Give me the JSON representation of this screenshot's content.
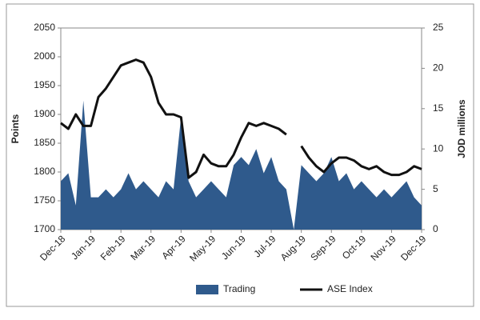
{
  "chart_data": {
    "type": "line-area",
    "categories": [
      "Dec-18",
      null,
      null,
      null,
      "Jan-19",
      null,
      null,
      null,
      "Feb-19",
      null,
      null,
      null,
      "Mar-19",
      null,
      null,
      null,
      "Apr-19",
      null,
      null,
      null,
      "May-19",
      null,
      null,
      null,
      "Jun-19",
      null,
      null,
      null,
      "Jul-19",
      null,
      null,
      null,
      "Aug-19",
      null,
      null,
      null,
      "Sep-19",
      null,
      null,
      null,
      "Oct-19",
      null,
      null,
      null,
      "Nov-19",
      null,
      null,
      null,
      "Dec-19"
    ],
    "series": [
      {
        "name": "Trading",
        "color": "#2f5a8c",
        "kind": "area",
        "axis": "y2",
        "values": [
          6,
          7,
          3,
          16,
          4,
          4,
          5,
          4,
          5,
          7,
          5,
          6,
          5,
          4,
          6,
          5,
          14,
          6,
          4,
          5,
          6,
          5,
          4,
          8,
          9,
          8,
          10,
          7,
          9,
          6,
          5,
          0,
          8,
          7,
          6,
          7,
          9,
          6,
          7,
          5,
          6,
          5,
          4,
          5,
          4,
          5,
          6,
          4,
          3
        ]
      },
      {
        "name": "ASE Index",
        "color": "#111111",
        "kind": "line",
        "values": [
          1885,
          1875,
          1900,
          1880,
          1880,
          1930,
          1945,
          1965,
          1985,
          1990,
          1995,
          1990,
          1965,
          1920,
          1900,
          1900,
          1895,
          1790,
          1800,
          1830,
          1815,
          1810,
          1810,
          1830,
          1860,
          1885,
          1880,
          1885,
          1880,
          1875,
          1865,
          null,
          1845,
          1825,
          1810,
          1800,
          1815,
          1825,
          1825,
          1820,
          1810,
          1805,
          1810,
          1800,
          1795,
          1795,
          1800,
          1810,
          1805
        ]
      }
    ],
    "ylabel": "Points",
    "y2label": "JOD millions",
    "ylim": [
      1700,
      2050
    ],
    "yticks": [
      1700,
      1750,
      1800,
      1850,
      1900,
      1950,
      2000,
      2050
    ],
    "y2lim": [
      0,
      25
    ],
    "y2ticks": [
      0,
      5,
      10,
      15,
      20,
      25
    ],
    "legend": "bottom"
  }
}
